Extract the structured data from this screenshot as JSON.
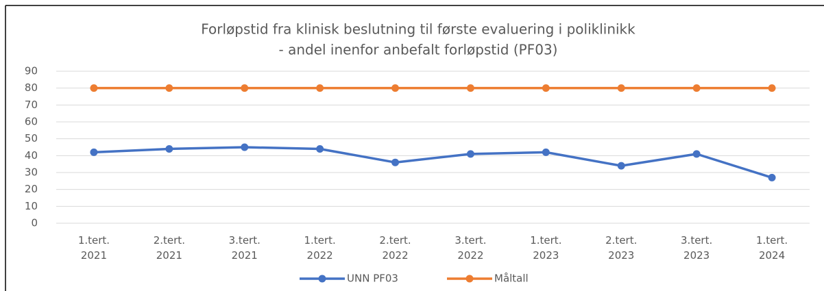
{
  "chart_data": {
    "type": "line",
    "title": [
      "Forløpstid fra klinisk beslutning til første evaluering i poliklinikk",
      "- andel inenfor anbefalt forløpstid (PF03)"
    ],
    "categories": [
      "1.tert. 2021",
      "2.tert. 2021",
      "3.tert. 2021",
      "1.tert. 2022",
      "2.tert. 2022",
      "3.tert. 2022",
      "1.tert. 2023",
      "2.tert. 2023",
      "3.tert. 2023",
      "1.tert. 2024"
    ],
    "series": [
      {
        "name": "UNN PF03",
        "color": "#4472c4",
        "values": [
          42,
          44,
          45,
          44,
          36,
          41,
          42,
          34,
          41,
          27
        ]
      },
      {
        "name": "Måltall",
        "color": "#ed7d31",
        "values": [
          80,
          80,
          80,
          80,
          80,
          80,
          80,
          80,
          80,
          80
        ]
      }
    ],
    "ylim": [
      0,
      90
    ],
    "yticks": [
      0,
      10,
      20,
      30,
      40,
      50,
      60,
      70,
      80,
      90
    ],
    "grid": true,
    "legend": "bottom"
  }
}
